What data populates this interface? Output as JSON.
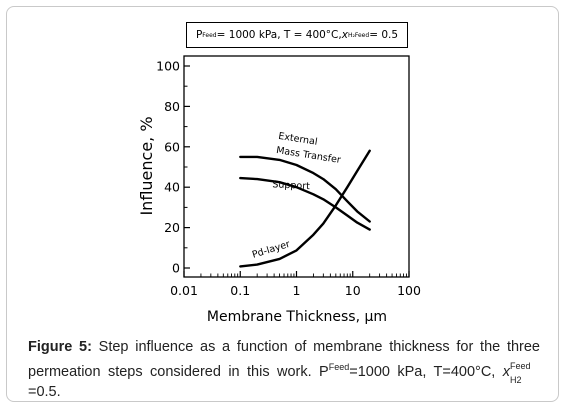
{
  "conditions": {
    "p_sym": "P",
    "p_sup": "Feed",
    "p_rest": " = 1000 kPa, T = 400°C, ",
    "x_sym": "x",
    "x_sub": "H₂",
    "x_sup": "Feed",
    "x_rest": " = 0.5"
  },
  "caption": {
    "label": "Figure 5:",
    "text_a": " Step influence as a function of membrane thickness for the three permeation steps considered in this work. P",
    "p_sup": "Feed",
    "text_b": "=1000 kPa, T=400°C, ",
    "x_sym": "x",
    "x_sub": "H2",
    "x_sup": "Feed",
    "text_c": "=0.5."
  },
  "chart_data": {
    "type": "line",
    "xlabel": "Membrane Thickness, µm",
    "ylabel": "Influence, %",
    "xscale": "log",
    "xlim": [
      0.01,
      100
    ],
    "ylim": [
      0,
      100
    ],
    "xticks": [
      0.01,
      0.1,
      1,
      10,
      100
    ],
    "xtick_labels": [
      "0.01",
      "0.1",
      "1",
      "10",
      "100"
    ],
    "yticks": [
      0,
      20,
      40,
      60,
      80,
      100
    ],
    "ytick_labels": [
      "0",
      "20",
      "40",
      "60",
      "80",
      "100"
    ],
    "grid": false,
    "series": [
      {
        "name": "External Mass Transfer",
        "x": [
          0.1,
          0.2,
          0.5,
          1,
          2,
          3,
          5,
          8,
          12,
          20
        ],
        "y": [
          55,
          55,
          53.5,
          51,
          47,
          44,
          39,
          33,
          28,
          23
        ]
      },
      {
        "name": "Support",
        "x": [
          0.1,
          0.2,
          0.5,
          1,
          2,
          3,
          5,
          8,
          12,
          20
        ],
        "y": [
          44.5,
          44,
          42.5,
          40,
          36.5,
          34,
          30,
          26,
          22.5,
          19
        ]
      },
      {
        "name": "Pd-layer",
        "x": [
          0.1,
          0.2,
          0.5,
          1,
          2,
          3,
          5,
          8,
          12,
          20
        ],
        "y": [
          0.8,
          1.7,
          4.5,
          8.7,
          16.5,
          22,
          31,
          40,
          48,
          58
        ]
      }
    ],
    "annotations": [
      {
        "text": "External",
        "x": 0.47,
        "y": 64,
        "rotate": 9
      },
      {
        "text": "Mass Transfer",
        "x": 0.43,
        "y": 57,
        "rotate": 9
      },
      {
        "text": "Support",
        "x": 0.37,
        "y": 40,
        "rotate": 3
      },
      {
        "text": "Pd-layer",
        "x": 0.17,
        "y": 5,
        "rotate": -17
      }
    ]
  }
}
